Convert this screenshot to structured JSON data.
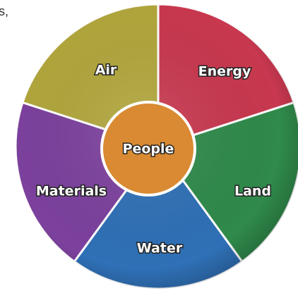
{
  "corner_text": "s,",
  "segments": [
    {
      "label": "Air"
    },
    {
      "label": "Energy"
    },
    {
      "label": "Land"
    },
    {
      "label": "Water"
    },
    {
      "label": "Materials"
    }
  ],
  "center": {
    "label": "People"
  }
}
